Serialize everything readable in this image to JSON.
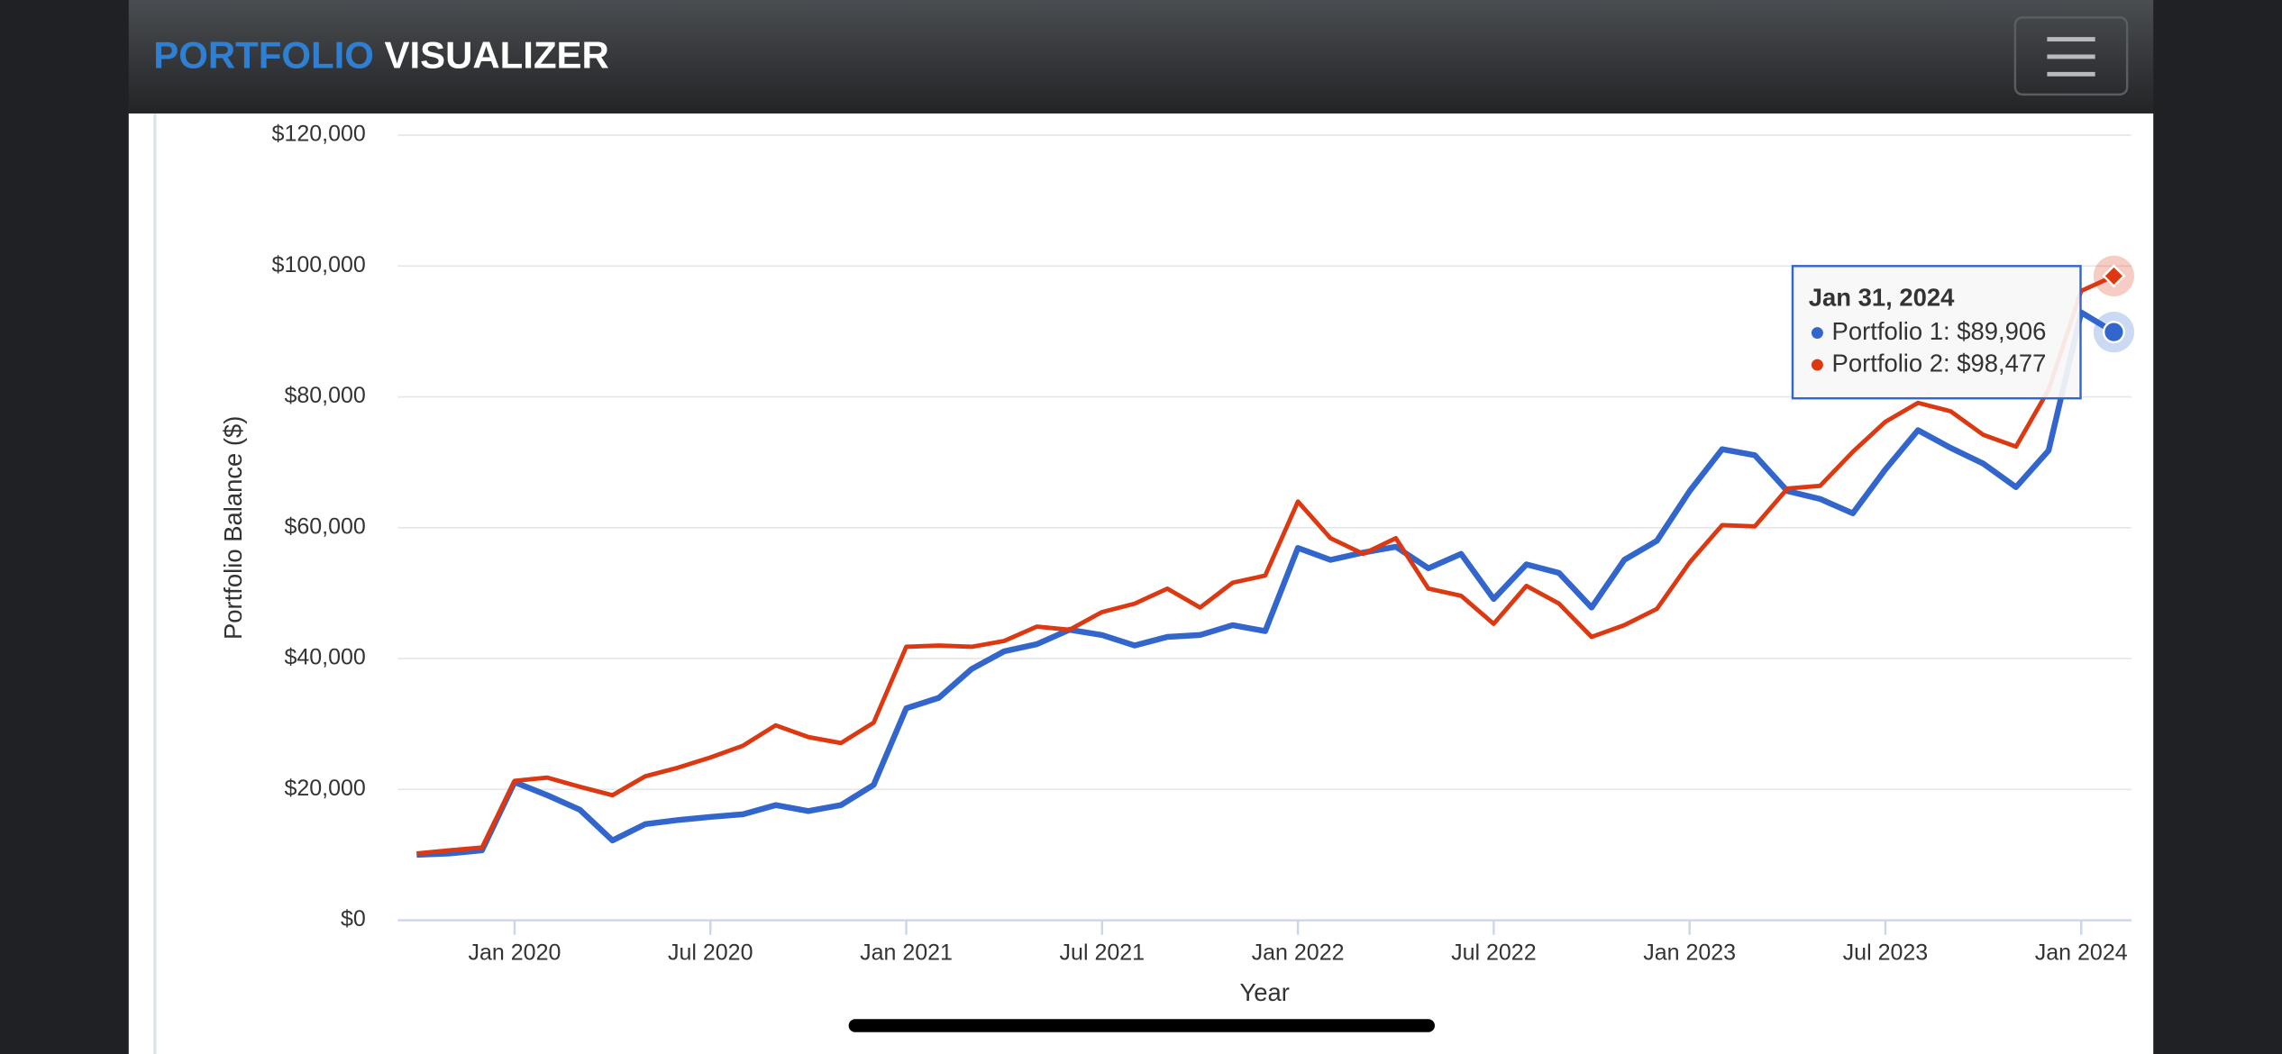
{
  "header": {
    "brand_first": "PORTFOLIO",
    "brand_second": "VISUALIZER"
  },
  "chart_data": {
    "type": "line",
    "x": [
      "2019-09",
      "2019-10",
      "2019-11",
      "2019-12",
      "2020-01",
      "2020-02",
      "2020-03",
      "2020-04",
      "2020-05",
      "2020-06",
      "2020-07",
      "2020-08",
      "2020-09",
      "2020-10",
      "2020-11",
      "2020-12",
      "2021-01",
      "2021-02",
      "2021-03",
      "2021-04",
      "2021-05",
      "2021-06",
      "2021-07",
      "2021-08",
      "2021-09",
      "2021-10",
      "2021-11",
      "2021-12",
      "2022-01",
      "2022-02",
      "2022-03",
      "2022-04",
      "2022-05",
      "2022-06",
      "2022-07",
      "2022-08",
      "2022-09",
      "2022-10",
      "2022-11",
      "2022-12",
      "2023-01",
      "2023-02",
      "2023-03",
      "2023-04",
      "2023-05",
      "2023-06",
      "2023-07",
      "2023-08",
      "2023-09",
      "2023-10",
      "2023-11",
      "2023-12",
      "2024-01"
    ],
    "series": [
      {
        "color": "#3366cc",
        "values": [
          10000,
          10200,
          10700,
          21100,
          19100,
          16900,
          12200,
          14700,
          15300,
          15800,
          16200,
          17600,
          16700,
          17600,
          20700,
          32400,
          34000,
          38400,
          41100,
          42200,
          44400,
          43600,
          42000,
          43300,
          43600,
          45100,
          44200,
          56900,
          55100,
          56200,
          57100,
          53800,
          56000,
          49100,
          54400,
          53100,
          47800,
          55100,
          58000,
          65600,
          72000,
          71100,
          65600,
          64400,
          62200,
          68900,
          74900,
          72200,
          69800,
          66200,
          71800,
          92900,
          89906
        ]
      },
      {
        "color": "#dc3912",
        "values": [
          10200,
          10700,
          11100,
          21300,
          21800,
          20400,
          19100,
          22000,
          23300,
          24900,
          26700,
          29800,
          28000,
          27100,
          30200,
          41800,
          42000,
          41800,
          42700,
          44900,
          44400,
          47100,
          48400,
          50700,
          47800,
          51600,
          52700,
          64000,
          58400,
          56000,
          58400,
          50700,
          49600,
          45300,
          51100,
          48400,
          43300,
          45100,
          47600,
          54700,
          60400,
          60200,
          66000,
          66400,
          71600,
          76200,
          79100,
          77800,
          74200,
          72400,
          81100,
          96200,
          98477
        ]
      }
    ],
    "ylim": [
      0,
      120000
    ],
    "yticks": [
      {
        "value": 0,
        "label": "$0"
      },
      {
        "value": 20000,
        "label": "$20,000"
      },
      {
        "value": 40000,
        "label": "$40,000"
      },
      {
        "value": 60000,
        "label": "$60,000"
      },
      {
        "value": 80000,
        "label": "$80,000"
      },
      {
        "value": 100000,
        "label": "$100,000"
      },
      {
        "value": 120000,
        "label": "$120,000"
      }
    ],
    "xticks": [
      {
        "value": "2020-01",
        "label": "Jan 2020"
      },
      {
        "value": "2020-07",
        "label": "Jul 2020"
      },
      {
        "value": "2021-01",
        "label": "Jan 2021"
      },
      {
        "value": "2021-07",
        "label": "Jul 2021"
      },
      {
        "value": "2022-01",
        "label": "Jan 2022"
      },
      {
        "value": "2022-07",
        "label": "Jul 2022"
      },
      {
        "value": "2023-01",
        "label": "Jan 2023"
      },
      {
        "value": "2023-07",
        "label": "Jul 2023"
      },
      {
        "value": "2024-01",
        "label": "Jan 2024"
      }
    ],
    "xlabel": "Year",
    "ylabel": "Portfolio Balance ($)",
    "grid": true,
    "tooltip": {
      "title": "Jan 31, 2024",
      "lines": [
        "Portfolio 1: $89,906",
        "Portfolio 2: $98,477"
      ]
    }
  }
}
